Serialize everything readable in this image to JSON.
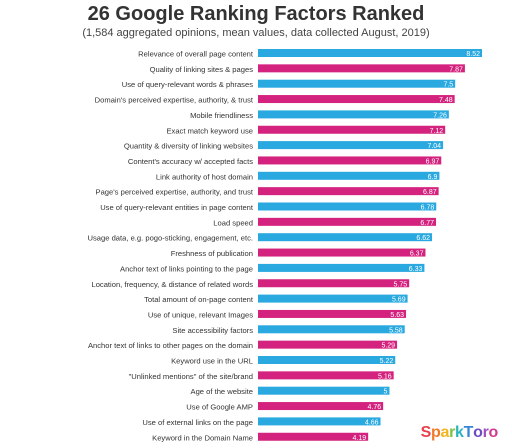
{
  "chart_data": {
    "type": "bar",
    "orientation": "horizontal",
    "title": "26 Google Ranking Factors Ranked",
    "subtitle": "(1,584 aggregated opinions, mean values, data collected August, 2019)",
    "xlim": [
      0,
      9
    ],
    "grid": false,
    "legend": "none",
    "categories": [
      "Relevance of overall page content",
      "Quality of linking sites & pages",
      "Use of query-relevant words & phrases",
      "Domain's perceived expertise, authority, & trust",
      "Mobile friendliness",
      "Exact match keyword use",
      "Quantity & diversity of linking websites",
      "Content's accuracy w/ accepted facts",
      "Link authority of host domain",
      "Page's perceived expertise, authority, and trust",
      "Use of query-relevant entities in page content",
      "Load speed",
      "Usage data, e.g. pogo-sticking, engagement, etc.",
      "Freshness of publication",
      "Anchor text of links pointing to the page",
      "Location, frequency, & distance of related words",
      "Total amount of on-page content",
      "Use of unique, relevant Images",
      "Site accessibility factors",
      "Anchor text of links to other pages on the domain",
      "Keyword use in the URL",
      "\"Unlinked mentions\" of the site/brand",
      "Age of the website",
      "Use of Google AMP",
      "Use of external links on the page",
      "Keyword in the Domain Name"
    ],
    "values": [
      8.52,
      7.87,
      7.5,
      7.48,
      7.26,
      7.12,
      7.04,
      6.97,
      6.9,
      6.87,
      6.78,
      6.77,
      6.62,
      6.37,
      6.33,
      5.75,
      5.69,
      5.63,
      5.58,
      5.29,
      5.22,
      5.16,
      5,
      4.76,
      4.66,
      4.19
    ],
    "value_labels": [
      "8.52",
      "7.87",
      "7.5",
      "7.48",
      "7.26",
      "7.12",
      "7.04",
      "6.97",
      "6.9",
      "6.87",
      "6.78",
      "6.77",
      "6.62",
      "6.37",
      "6.33",
      "5.75",
      "5.69",
      "5.63",
      "5.58",
      "5.29",
      "5.22",
      "5.16",
      "5",
      "4.76",
      "4.66",
      "4.19"
    ],
    "bar_colors": [
      "#29a9e0",
      "#d4237f"
    ]
  },
  "logo": {
    "text": "SparkToro",
    "letter_colors": [
      "#e8414a",
      "#f07a2a",
      "#f2b41f",
      "#7cc242",
      "#2bb3c0",
      "#3a86d6",
      "#6d4ec0",
      "#a04fc0",
      "#d03c8c"
    ]
  }
}
